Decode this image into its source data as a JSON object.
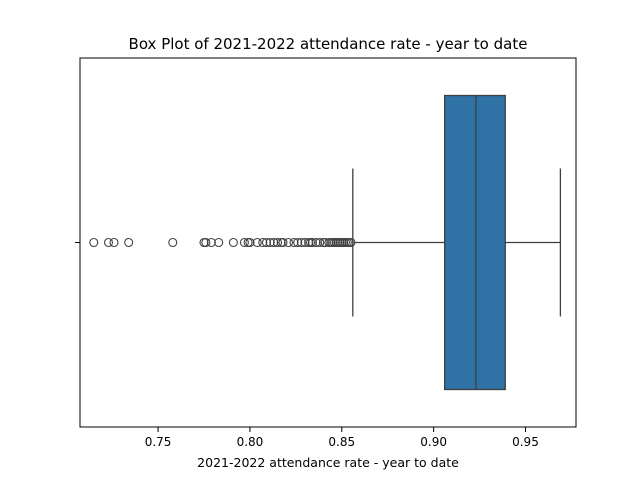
{
  "chart_data": {
    "type": "box",
    "title": "Box Plot of 2021-2022 attendance rate - year to date",
    "xlabel": "2021-2022 attendance rate - year to date",
    "ylabel": "",
    "xlim": [
      0.7075,
      0.9775
    ],
    "x_ticks": [
      0.75,
      0.8,
      0.85,
      0.9,
      0.95
    ],
    "x_tick_labels": [
      "0.75",
      "0.80",
      "0.85",
      "0.90",
      "0.95"
    ],
    "box": {
      "whisker_low": 0.856,
      "q1": 0.906,
      "median": 0.923,
      "q3": 0.939,
      "whisker_high": 0.969
    },
    "outliers": [
      0.715,
      0.723,
      0.726,
      0.734,
      0.758,
      0.775,
      0.776,
      0.779,
      0.783,
      0.791,
      0.797,
      0.799,
      0.8,
      0.804,
      0.807,
      0.809,
      0.811,
      0.813,
      0.815,
      0.817,
      0.818,
      0.821,
      0.824,
      0.826,
      0.828,
      0.83,
      0.832,
      0.833,
      0.834,
      0.836,
      0.838,
      0.84,
      0.841,
      0.843,
      0.844,
      0.845,
      0.846,
      0.847,
      0.848,
      0.849,
      0.85,
      0.851,
      0.852,
      0.853,
      0.854,
      0.855
    ],
    "grid": false,
    "colors": {
      "box_fill": "#2f73a6",
      "line": "#3f3f3f",
      "axis": "#000000"
    }
  }
}
